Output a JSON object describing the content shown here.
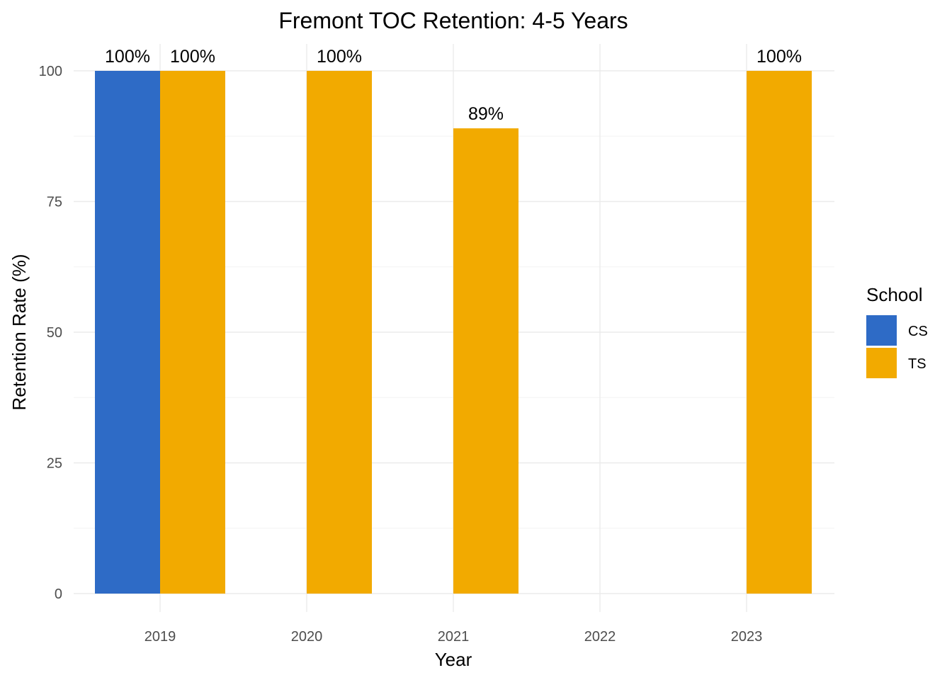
{
  "chart_data": {
    "type": "bar",
    "title": "Fremont TOC Retention: 4-5 Years",
    "xlabel": "Year",
    "ylabel": "Retention Rate (%)",
    "categories": [
      "2019",
      "2020",
      "2021",
      "2022",
      "2023"
    ],
    "ylim": [
      0,
      100
    ],
    "yticks": [
      0,
      25,
      50,
      75,
      100
    ],
    "grid": true,
    "legend": {
      "title": "School",
      "position": "right"
    },
    "series": [
      {
        "name": "CS",
        "color": "#2e6bc6",
        "values": [
          100,
          null,
          null,
          null,
          null
        ],
        "labels": [
          "100%",
          null,
          null,
          null,
          null
        ]
      },
      {
        "name": "TS",
        "color": "#f2aa00",
        "values": [
          100,
          100,
          89,
          null,
          100
        ],
        "labels": [
          "100%",
          "100%",
          "89%",
          null,
          "100%"
        ]
      }
    ]
  }
}
